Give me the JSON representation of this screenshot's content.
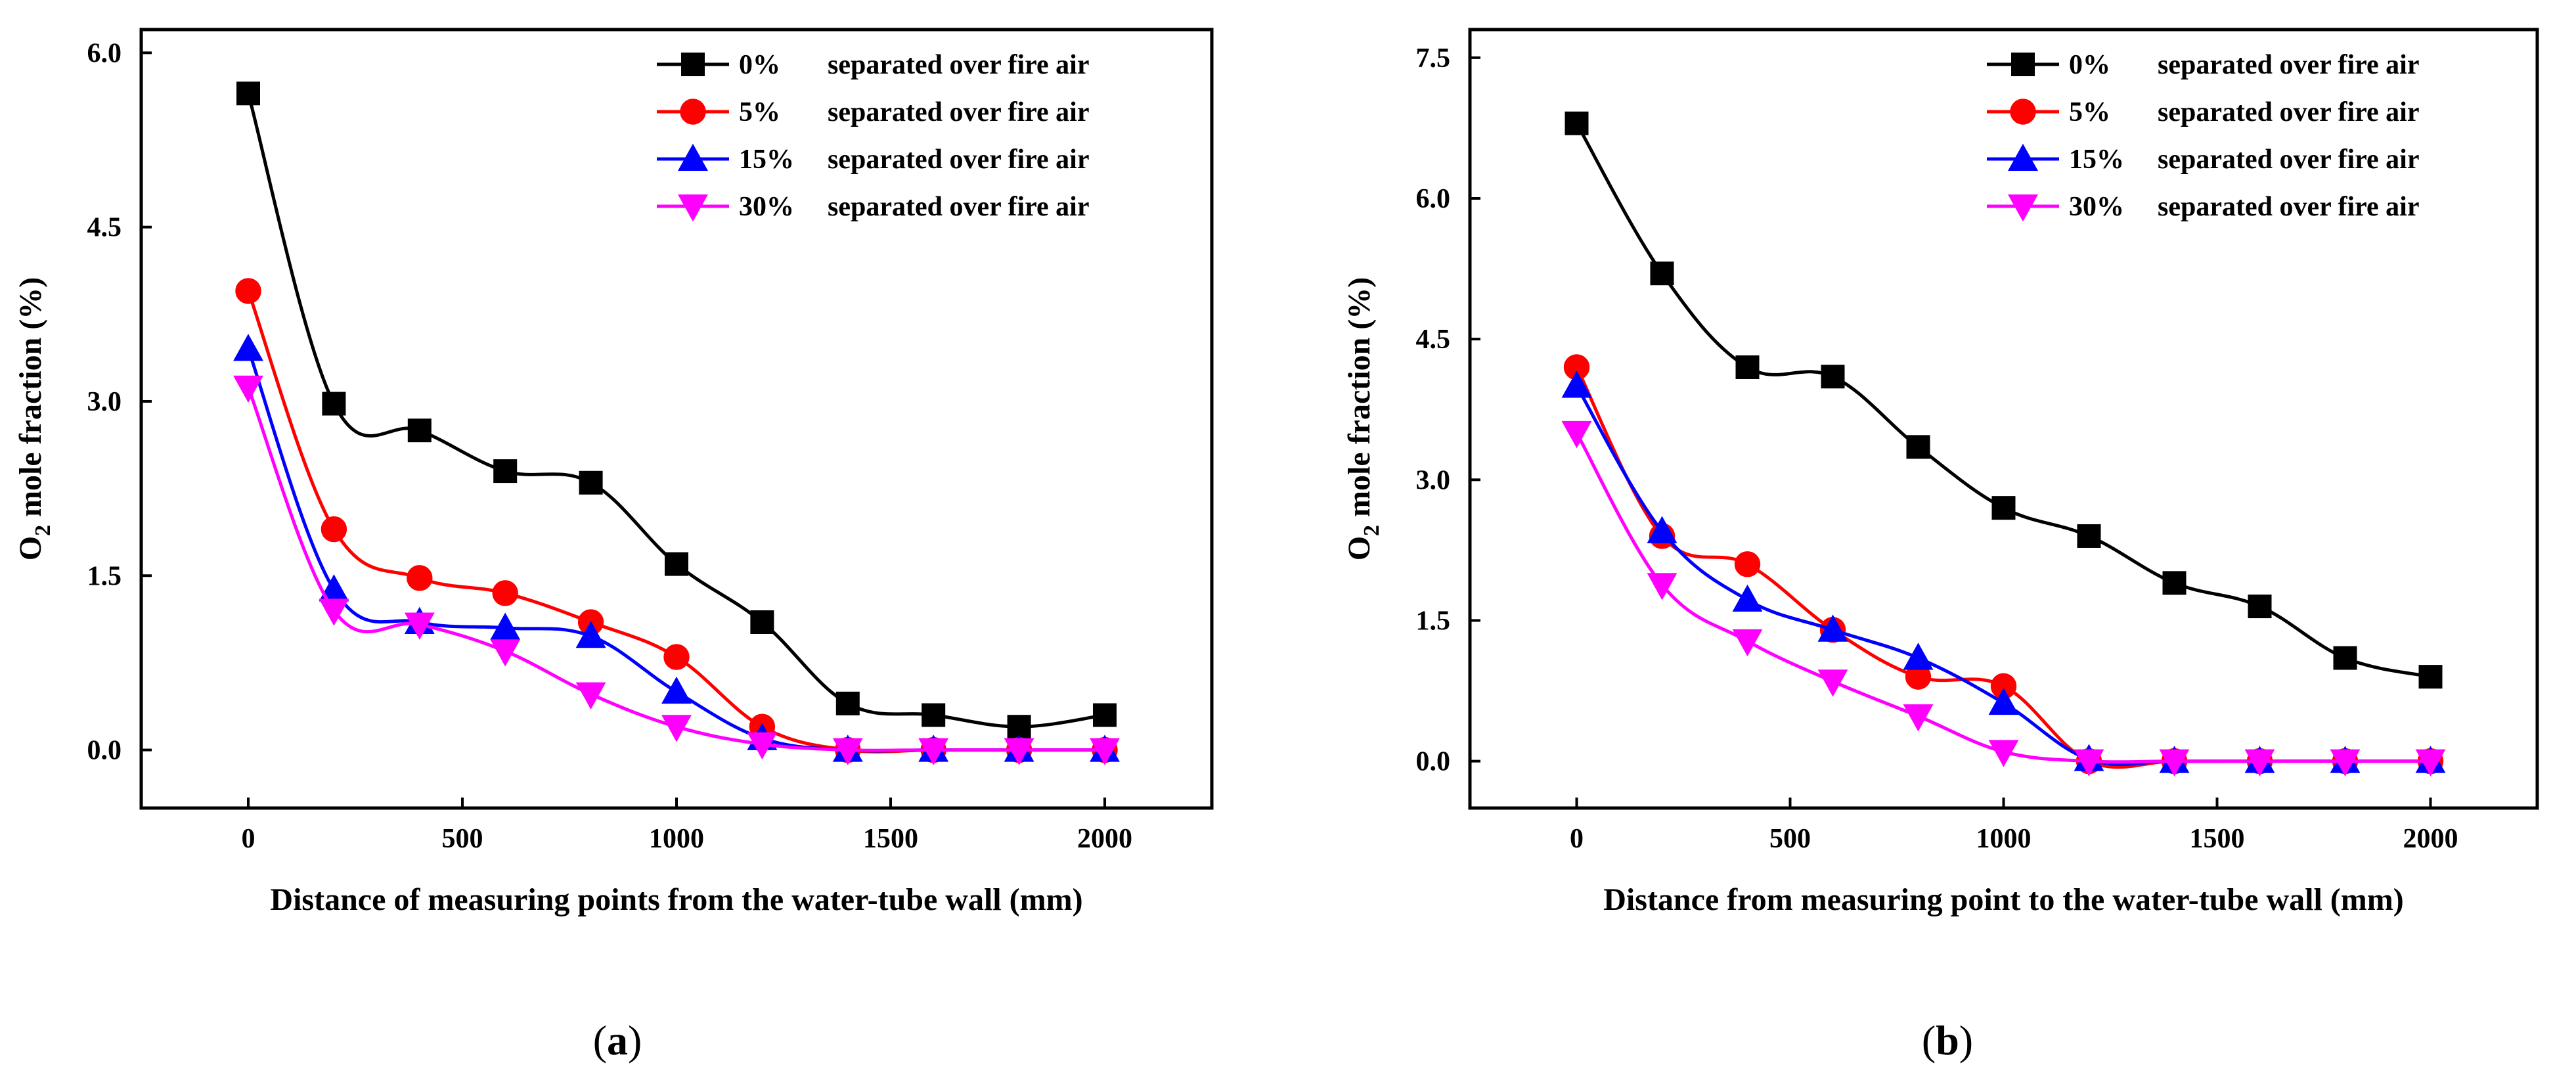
{
  "chart_data": [
    {
      "type": "line",
      "panel_label": "a",
      "xlabel": "Distance of measuring points from the water-tube wall (mm)",
      "ylabel_main": "O",
      "ylabel_sub": "2",
      "ylabel_rest": " mole fraction (%)",
      "xlim": [
        -250,
        2250
      ],
      "ylim": [
        -0.5,
        6.2
      ],
      "xticks": [
        0,
        500,
        1000,
        1500,
        2000
      ],
      "yticks": [
        0.0,
        1.5,
        3.0,
        4.5,
        6.0
      ],
      "ytick_labels": [
        "0.0",
        "1.5",
        "3.0",
        "4.5",
        "6.0"
      ],
      "x": [
        0,
        200,
        400,
        600,
        800,
        1000,
        1200,
        1400,
        1600,
        1800,
        2000
      ],
      "series": [
        {
          "name": "0%",
          "label_pct": "0%",
          "label_desc": "separated over fire air",
          "color": "#000000",
          "marker": "square",
          "values": [
            5.65,
            2.98,
            2.75,
            2.4,
            2.3,
            1.6,
            1.1,
            0.4,
            0.3,
            0.2,
            0.3
          ]
        },
        {
          "name": "5%",
          "label_pct": "5%",
          "label_desc": "separated over fire air",
          "color": "#ff0000",
          "marker": "circle",
          "values": [
            3.95,
            1.9,
            1.48,
            1.35,
            1.1,
            0.8,
            0.2,
            0.0,
            0.0,
            0.0,
            0.0
          ]
        },
        {
          "name": "15%",
          "label_pct": "15%",
          "label_desc": "separated over fire air",
          "color": "#0000ff",
          "marker": "triangle-up",
          "values": [
            3.45,
            1.38,
            1.1,
            1.05,
            0.98,
            0.5,
            0.1,
            0.0,
            0.0,
            0.0,
            0.0
          ]
        },
        {
          "name": "30%",
          "label_pct": "30%",
          "label_desc": "separated over fire air",
          "color": "#ff00ff",
          "marker": "triangle-down",
          "values": [
            3.12,
            1.2,
            1.08,
            0.85,
            0.48,
            0.2,
            0.05,
            0.0,
            0.0,
            0.0,
            0.0
          ]
        }
      ]
    },
    {
      "type": "line",
      "panel_label": "b",
      "xlabel": "Distance from measuring point  to the water-tube wall (mm)",
      "ylabel_main": "O",
      "ylabel_sub": "2",
      "ylabel_rest": " mole fraction (%)",
      "xlim": [
        -250,
        2250
      ],
      "ylim": [
        -0.5,
        7.8
      ],
      "xticks": [
        0,
        500,
        1000,
        1500,
        2000
      ],
      "yticks": [
        0.0,
        1.5,
        3.0,
        4.5,
        6.0,
        7.5
      ],
      "ytick_labels": [
        "0.0",
        "1.5",
        "3.0",
        "4.5",
        "6.0",
        "7.5"
      ],
      "x": [
        0,
        200,
        400,
        600,
        800,
        1000,
        1200,
        1400,
        1600,
        1800,
        2000
      ],
      "series": [
        {
          "name": "0%",
          "label_pct": "0%",
          "label_desc": "separated over fire air",
          "color": "#000000",
          "marker": "square",
          "values": [
            6.8,
            5.2,
            4.2,
            4.1,
            3.35,
            2.7,
            2.4,
            1.9,
            1.65,
            1.1,
            0.9
          ]
        },
        {
          "name": "5%",
          "label_pct": "5%",
          "label_desc": "separated over fire air",
          "color": "#ff0000",
          "marker": "circle",
          "values": [
            4.2,
            2.4,
            2.1,
            1.4,
            0.9,
            0.8,
            0.0,
            0.0,
            0.0,
            0.0,
            0.0
          ]
        },
        {
          "name": "15%",
          "label_pct": "15%",
          "label_desc": "separated over fire air",
          "color": "#0000ff",
          "marker": "triangle-up",
          "values": [
            4.0,
            2.45,
            1.72,
            1.4,
            1.1,
            0.62,
            0.02,
            0.0,
            0.0,
            0.0,
            0.0
          ]
        },
        {
          "name": "30%",
          "label_pct": "30%",
          "label_desc": "separated over fire air",
          "color": "#ff00ff",
          "marker": "triangle-down",
          "values": [
            3.5,
            1.88,
            1.28,
            0.85,
            0.48,
            0.1,
            0.0,
            0.0,
            0.0,
            0.0,
            0.0
          ]
        }
      ]
    }
  ]
}
